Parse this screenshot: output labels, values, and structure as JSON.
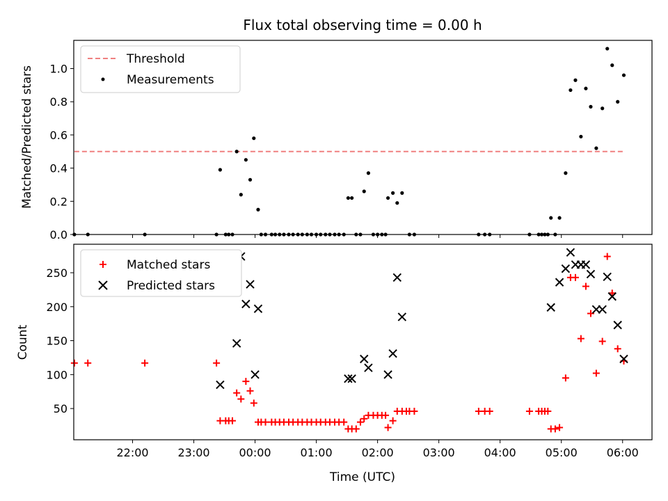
{
  "figure": {
    "title": "Flux total observing time = 0.00 h"
  },
  "chart_data": [
    {
      "type": "scatter",
      "title": "Flux total observing time = 0.00 h",
      "xlabel": "",
      "ylabel": "Matched/Predicted stars",
      "xlim": [
        -2.96,
        6.48
      ],
      "ylim": [
        0,
        1.17
      ],
      "yticks": [
        0.0,
        0.2,
        0.4,
        0.6,
        0.8,
        1.0
      ],
      "ytick_labels": [
        "0.0",
        "0.2",
        "0.4",
        "0.6",
        "0.8",
        "1.0"
      ],
      "legend": {
        "position": "upper-left",
        "entries": [
          "Threshold",
          "Measurements"
        ]
      },
      "series": [
        {
          "name": "Threshold",
          "kind": "dashed-line",
          "color": "#f08080",
          "x": [
            -2.95,
            6.03
          ],
          "y": [
            0.5,
            0.5
          ]
        },
        {
          "name": "Measurements",
          "kind": "dot",
          "color": "#000000",
          "points": [
            [
              -2.95,
              0
            ],
            [
              -2.73,
              0
            ],
            [
              -1.8,
              0
            ],
            [
              -0.63,
              0
            ],
            [
              -0.57,
              0.39
            ],
            [
              -0.48,
              0
            ],
            [
              -0.43,
              0
            ],
            [
              -0.37,
              0
            ],
            [
              -0.3,
              0.5
            ],
            [
              -0.23,
              0.24
            ],
            [
              -0.15,
              0.45
            ],
            [
              -0.08,
              0.33
            ],
            [
              -0.02,
              0.58
            ],
            [
              0.05,
              0.15
            ],
            [
              0.1,
              0
            ],
            [
              0.17,
              0
            ],
            [
              0.27,
              0
            ],
            [
              0.33,
              0
            ],
            [
              0.4,
              0
            ],
            [
              0.47,
              0
            ],
            [
              0.55,
              0
            ],
            [
              0.62,
              0
            ],
            [
              0.7,
              0
            ],
            [
              0.77,
              0
            ],
            [
              0.85,
              0
            ],
            [
              0.92,
              0
            ],
            [
              1.0,
              0
            ],
            [
              1.07,
              0
            ],
            [
              1.15,
              0
            ],
            [
              1.22,
              0
            ],
            [
              1.3,
              0
            ],
            [
              1.37,
              0
            ],
            [
              1.45,
              0
            ],
            [
              1.52,
              0.22
            ],
            [
              1.58,
              0.22
            ],
            [
              1.65,
              0
            ],
            [
              1.72,
              0
            ],
            [
              1.78,
              0.26
            ],
            [
              1.85,
              0.37
            ],
            [
              1.93,
              0
            ],
            [
              2.0,
              0
            ],
            [
              2.07,
              0
            ],
            [
              2.13,
              0
            ],
            [
              2.17,
              0.22
            ],
            [
              2.25,
              0.25
            ],
            [
              2.32,
              0.19
            ],
            [
              2.4,
              0.25
            ],
            [
              2.52,
              0
            ],
            [
              2.6,
              0
            ],
            [
              3.65,
              0
            ],
            [
              3.75,
              0
            ],
            [
              3.83,
              0
            ],
            [
              4.48,
              0
            ],
            [
              4.63,
              0
            ],
            [
              4.68,
              0
            ],
            [
              4.73,
              0
            ],
            [
              4.78,
              0
            ],
            [
              4.83,
              0.1
            ],
            [
              4.9,
              0
            ],
            [
              4.97,
              0.1
            ],
            [
              5.07,
              0.37
            ],
            [
              5.15,
              0.87
            ],
            [
              5.23,
              0.93
            ],
            [
              5.32,
              0.59
            ],
            [
              5.4,
              0.88
            ],
            [
              5.48,
              0.77
            ],
            [
              5.57,
              0.52
            ],
            [
              5.67,
              0.76
            ],
            [
              5.75,
              1.12
            ],
            [
              5.83,
              1.02
            ],
            [
              5.92,
              0.8
            ],
            [
              6.02,
              0.96
            ]
          ]
        }
      ]
    },
    {
      "type": "scatter",
      "title": "",
      "xlabel": "Time (UTC)",
      "ylabel": "Count",
      "xlim": [
        -2.96,
        6.48
      ],
      "ylim": [
        4,
        292
      ],
      "yticks": [
        50,
        100,
        150,
        200,
        250
      ],
      "ytick_labels": [
        "50",
        "100",
        "150",
        "200",
        "250"
      ],
      "xticks": [
        -3,
        -2,
        -1,
        0,
        1,
        2,
        3,
        4,
        5,
        6
      ],
      "xtick_labels": [
        "21:00",
        "22:00",
        "23:00",
        "00:00",
        "01:00",
        "02:00",
        "03:00",
        "04:00",
        "05:00",
        "06:00"
      ],
      "legend": {
        "position": "upper-left",
        "entries": [
          "Matched stars",
          "Predicted stars"
        ]
      },
      "series": [
        {
          "name": "Matched stars",
          "kind": "plus",
          "color": "#ff0000",
          "points": [
            [
              -2.95,
              117
            ],
            [
              -2.73,
              117
            ],
            [
              -1.8,
              117
            ],
            [
              -0.63,
              117
            ],
            [
              -0.57,
              32
            ],
            [
              -0.48,
              32
            ],
            [
              -0.43,
              32
            ],
            [
              -0.37,
              32
            ],
            [
              -0.3,
              73
            ],
            [
              -0.23,
              64
            ],
            [
              -0.15,
              90
            ],
            [
              -0.08,
              76
            ],
            [
              -0.02,
              58
            ],
            [
              0.05,
              30
            ],
            [
              0.1,
              30
            ],
            [
              0.17,
              30
            ],
            [
              0.27,
              30
            ],
            [
              0.33,
              30
            ],
            [
              0.4,
              30
            ],
            [
              0.47,
              30
            ],
            [
              0.55,
              30
            ],
            [
              0.62,
              30
            ],
            [
              0.7,
              30
            ],
            [
              0.77,
              30
            ],
            [
              0.85,
              30
            ],
            [
              0.92,
              30
            ],
            [
              1.0,
              30
            ],
            [
              1.07,
              30
            ],
            [
              1.15,
              30
            ],
            [
              1.22,
              30
            ],
            [
              1.3,
              30
            ],
            [
              1.37,
              30
            ],
            [
              1.45,
              30
            ],
            [
              1.52,
              20
            ],
            [
              1.58,
              20
            ],
            [
              1.65,
              20
            ],
            [
              1.72,
              30
            ],
            [
              1.78,
              35
            ],
            [
              1.85,
              40
            ],
            [
              1.93,
              40
            ],
            [
              2.0,
              40
            ],
            [
              2.07,
              40
            ],
            [
              2.13,
              40
            ],
            [
              2.17,
              22
            ],
            [
              2.25,
              32
            ],
            [
              2.32,
              46
            ],
            [
              2.4,
              46
            ],
            [
              2.47,
              46
            ],
            [
              2.52,
              46
            ],
            [
              2.6,
              46
            ],
            [
              3.65,
              46
            ],
            [
              3.75,
              46
            ],
            [
              3.83,
              46
            ],
            [
              4.48,
              46
            ],
            [
              4.63,
              46
            ],
            [
              4.68,
              46
            ],
            [
              4.73,
              46
            ],
            [
              4.78,
              46
            ],
            [
              4.83,
              20
            ],
            [
              4.9,
              20
            ],
            [
              4.97,
              22
            ],
            [
              5.07,
              95
            ],
            [
              5.15,
              243
            ],
            [
              5.23,
              243
            ],
            [
              5.32,
              153
            ],
            [
              5.4,
              230
            ],
            [
              5.48,
              190
            ],
            [
              5.57,
              102
            ],
            [
              5.67,
              149
            ],
            [
              5.75,
              274
            ],
            [
              5.83,
              220
            ],
            [
              5.92,
              138
            ],
            [
              6.02,
              120
            ]
          ]
        },
        {
          "name": "Predicted stars",
          "kind": "x",
          "color": "#000000",
          "points": [
            [
              -0.57,
              85
            ],
            [
              -0.3,
              146
            ],
            [
              -0.23,
              274
            ],
            [
              -0.15,
              204
            ],
            [
              -0.08,
              233
            ],
            [
              0.0,
              100
            ],
            [
              0.05,
              197
            ],
            [
              1.52,
              94
            ],
            [
              1.58,
              94
            ],
            [
              1.78,
              123
            ],
            [
              1.85,
              110
            ],
            [
              2.17,
              100
            ],
            [
              2.25,
              131
            ],
            [
              2.32,
              243
            ],
            [
              2.4,
              185
            ],
            [
              4.83,
              199
            ],
            [
              4.97,
              236
            ],
            [
              5.07,
              256
            ],
            [
              5.15,
              280
            ],
            [
              5.23,
              262
            ],
            [
              5.32,
              262
            ],
            [
              5.4,
              262
            ],
            [
              5.48,
              248
            ],
            [
              5.57,
              196
            ],
            [
              5.67,
              196
            ],
            [
              5.75,
              244
            ],
            [
              5.83,
              215
            ],
            [
              5.92,
              173
            ],
            [
              6.02,
              123
            ]
          ]
        }
      ]
    }
  ]
}
